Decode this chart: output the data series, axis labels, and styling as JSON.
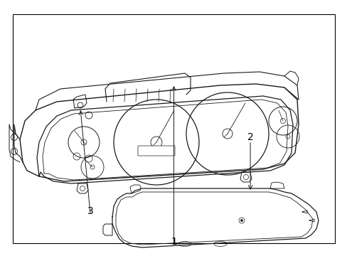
{
  "background_color": "#ffffff",
  "border_color": "#000000",
  "line_color": "#1a1a1a",
  "label_color": "#000000",
  "labels": {
    "1": [
      0.5,
      0.965
    ],
    "2": [
      0.72,
      0.555
    ],
    "3": [
      0.26,
      0.845
    ]
  },
  "figsize": [
    4.89,
    3.6
  ],
  "dpi": 100
}
